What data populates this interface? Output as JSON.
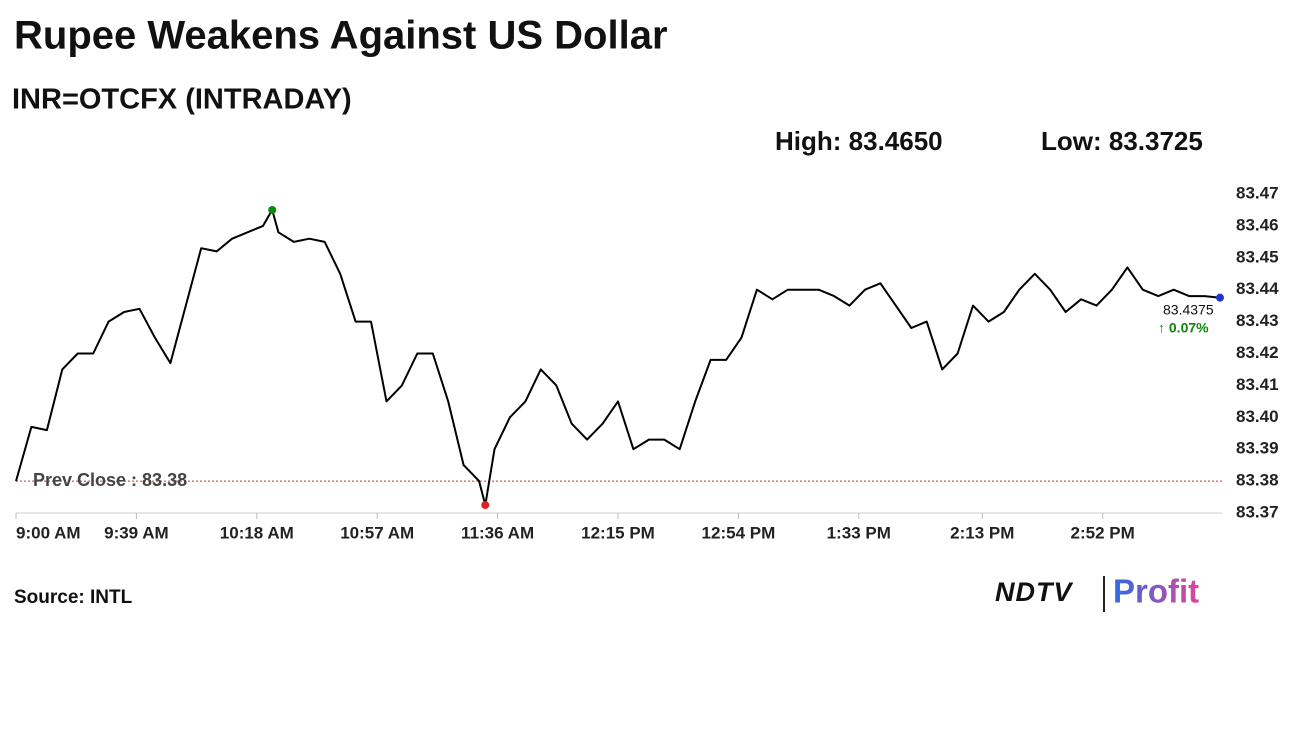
{
  "chart_data": {
    "type": "line",
    "title": "Rupee Weakens Against US Dollar",
    "subtitle": "INR=OTCFX (INTRADAY)",
    "high_text": "High: 83.4650",
    "low_text": "Low: 83.3725",
    "high_point": {
      "x": 83,
      "value": 83.465,
      "color": "#0a8a0a"
    },
    "low_point": {
      "x": 152,
      "value": 83.3725,
      "color": "#e02020"
    },
    "last_point": {
      "x": 390,
      "value": 83.4375,
      "label": "83.4375",
      "color": "#2233cc"
    },
    "change": {
      "value": 0.07,
      "label": "↑ 0.07%",
      "color": "#0a8a0a"
    },
    "prev_close": {
      "value": 83.38,
      "label": "Prev Close : 83.38",
      "color": "#c0392b"
    },
    "source": "Source: INTL",
    "logo": [
      "NDTV",
      "Profit"
    ],
    "color": "#000000",
    "x": [
      0,
      5,
      10,
      15,
      20,
      25,
      30,
      35,
      40,
      45,
      50,
      55,
      60,
      65,
      70,
      75,
      80,
      83,
      85,
      90,
      95,
      100,
      105,
      110,
      115,
      120,
      125,
      130,
      135,
      140,
      145,
      150,
      152,
      155,
      160,
      165,
      170,
      175,
      180,
      185,
      190,
      195,
      200,
      205,
      210,
      215,
      220,
      225,
      230,
      235,
      240,
      245,
      250,
      255,
      260,
      265,
      270,
      275,
      280,
      285,
      290,
      295,
      300,
      305,
      310,
      315,
      320,
      325,
      330,
      335,
      340,
      345,
      350,
      355,
      360,
      365,
      370,
      375,
      380,
      385,
      390
    ],
    "values": [
      83.38,
      83.397,
      83.396,
      83.415,
      83.42,
      83.42,
      83.43,
      83.433,
      83.434,
      83.425,
      83.417,
      83.435,
      83.453,
      83.452,
      83.456,
      83.458,
      83.46,
      83.465,
      83.458,
      83.455,
      83.456,
      83.455,
      83.445,
      83.43,
      83.43,
      83.405,
      83.41,
      83.42,
      83.42,
      83.405,
      83.385,
      83.38,
      83.3725,
      83.39,
      83.4,
      83.405,
      83.415,
      83.41,
      83.398,
      83.393,
      83.398,
      83.405,
      83.39,
      83.393,
      83.393,
      83.39,
      83.405,
      83.418,
      83.418,
      83.425,
      83.44,
      83.437,
      83.44,
      83.44,
      83.44,
      83.438,
      83.435,
      83.44,
      83.442,
      83.435,
      83.428,
      83.43,
      83.415,
      83.42,
      83.435,
      83.43,
      83.433,
      83.44,
      83.445,
      83.44,
      83.433,
      83.437,
      83.435,
      83.44,
      83.447,
      83.44,
      83.438,
      83.44,
      83.438,
      83.438,
      83.4375
    ],
    "xlim": [
      0,
      390
    ],
    "xticks": [
      {
        "value": 0,
        "label": "9:00 AM"
      },
      {
        "value": 39,
        "label": "9:39 AM"
      },
      {
        "value": 78,
        "label": "10:18 AM"
      },
      {
        "value": 117,
        "label": "10:57 AM"
      },
      {
        "value": 156,
        "label": "11:36 AM"
      },
      {
        "value": 195,
        "label": "12:15 PM"
      },
      {
        "value": 234,
        "label": "12:54 PM"
      },
      {
        "value": 273,
        "label": "1:33 PM"
      },
      {
        "value": 313,
        "label": "2:13 PM"
      },
      {
        "value": 352,
        "label": "2:52 PM"
      }
    ],
    "ylim": [
      83.37,
      83.47
    ],
    "yticks": [
      83.37,
      83.38,
      83.39,
      {
        "value": 83.4,
        "label": "83.40"
      },
      83.41,
      83.42,
      83.43,
      83.44,
      83.45,
      83.46,
      83.47
    ]
  }
}
